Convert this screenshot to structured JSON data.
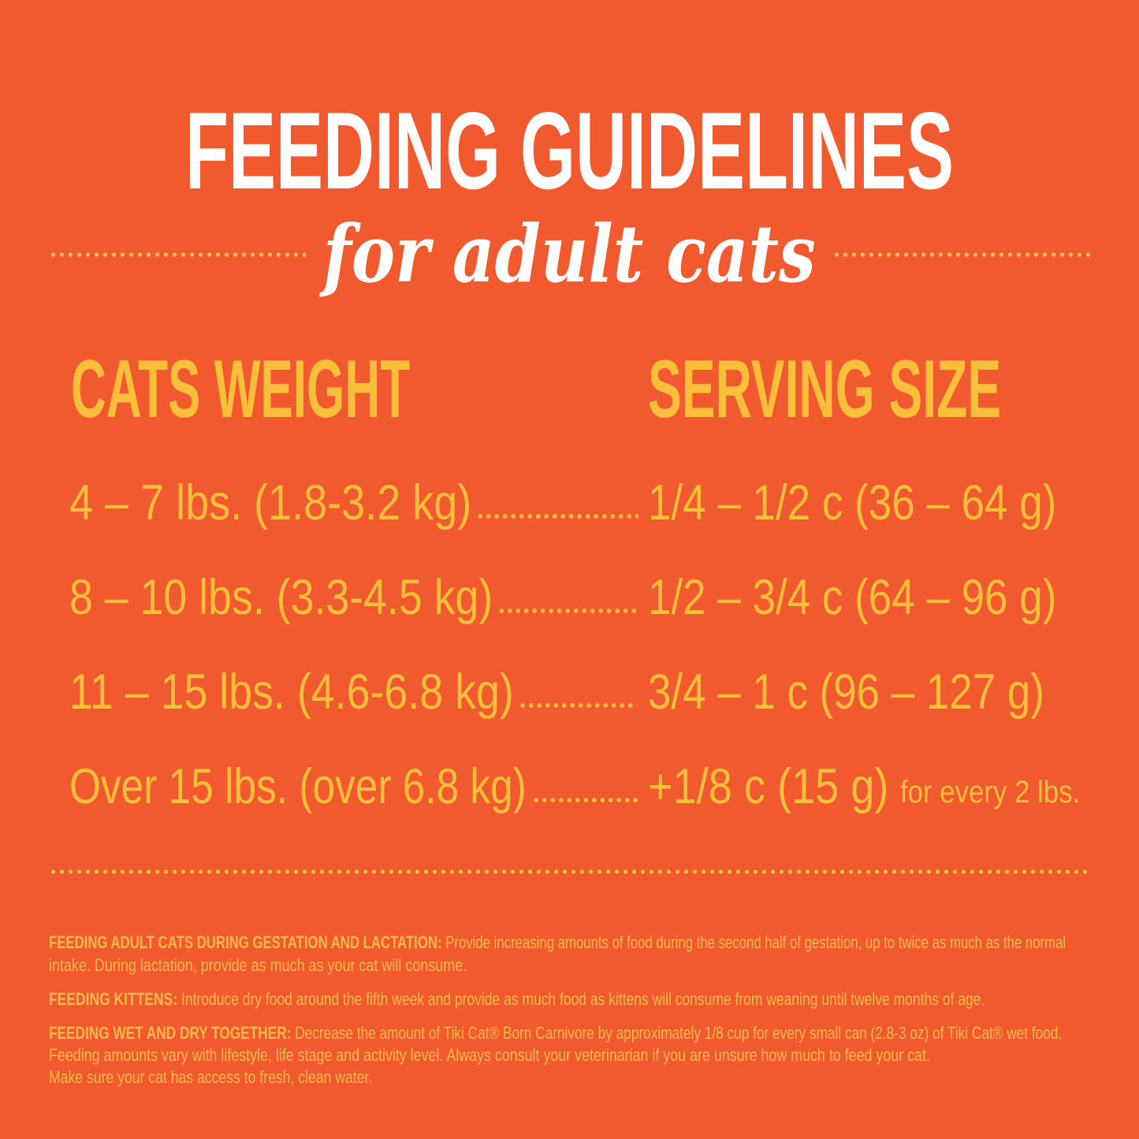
{
  "title": "FEEDING GUIDELINES",
  "subtitle": "for adult cats",
  "columns": {
    "weight": "CATS WEIGHT",
    "serving": "SERVING SIZE"
  },
  "rows": [
    {
      "weight": "4 – 7 lbs. (1.8-3.2 kg)",
      "serving": "1/4 – 1/2 c (36 – 64 g)"
    },
    {
      "weight": "8 – 10 lbs. (3.3-4.5 kg)",
      "serving": "1/2 – 3/4 c (64 – 96 g)"
    },
    {
      "weight": "11 – 15 lbs. (4.6-6.8 kg)",
      "serving": "3/4 – 1 c (96 – 127 g)"
    },
    {
      "weight": "Over 15 lbs. (over 6.8 kg)",
      "serving": "+1/8 c (15 g)",
      "note": "for every 2 lbs."
    }
  ],
  "notes": [
    {
      "label": "FEEDING ADULT CATS DURING GESTATION AND LACTATION:",
      "lines": [
        "Provide increasing amounts of food during the second half of gestation, up to twice as much as the normal",
        "intake.  During lactation, provide as much as your cat will consume."
      ]
    },
    {
      "label": "FEEDING KITTENS:",
      "lines": [
        "Introduce dry food around the fifth week and provide as much food as kittens will consume from weaning until twelve months of age."
      ]
    },
    {
      "label": "FEEDING WET AND DRY TOGETHER:",
      "lines": [
        "Decrease the amount of Tiki Cat® Born Carnivore by approximately 1/8 cup for every small can (2.8-3 oz) of Tiki Cat® wet food.",
        "Feeding amounts vary with lifestyle, life stage and activity level.  Always consult your veterinarian if you are unsure how much to feed your cat.",
        "Make sure your cat has access to fresh, clean water."
      ]
    }
  ],
  "colors": {
    "background": "#F15A2E",
    "accent": "#F9BE3A",
    "title": "#FFFFFF"
  }
}
